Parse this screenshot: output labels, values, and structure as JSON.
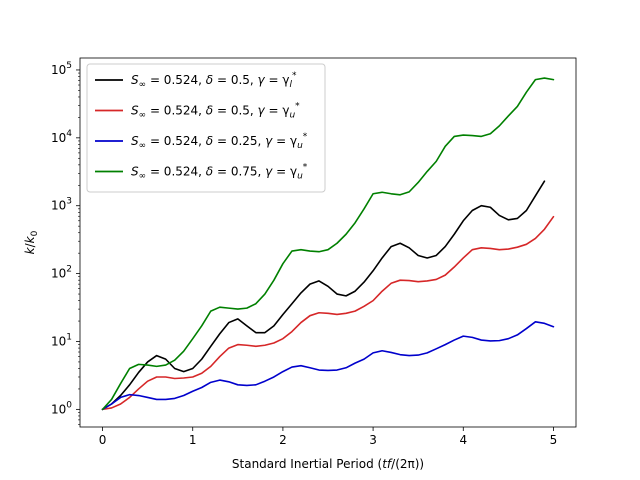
{
  "chart_data": {
    "type": "line",
    "title": "",
    "xlabel": "Standard Inertial Period (tf/(2π))",
    "ylabel": "k/k0",
    "xlim": [
      -0.25,
      5.25
    ],
    "ylim": [
      0.55,
      150000
    ],
    "yscale": "log",
    "grid": false,
    "legend_position": "upper-left",
    "xticks": [
      0,
      1,
      2,
      3,
      4,
      5
    ],
    "xtick_labels": [
      "0",
      "1",
      "2",
      "3",
      "4",
      "5"
    ],
    "yticks": [
      1,
      10,
      100,
      1000,
      10000,
      100000
    ],
    "ytick_labels": [
      "10",
      "10",
      "10",
      "10",
      "10",
      "10"
    ],
    "ytick_exponents": [
      "0",
      "1",
      "2",
      "3",
      "4",
      "5"
    ],
    "series": [
      {
        "name": "S∞ = 0.524, δ = 0.5, γ = γl*",
        "color": "#000000",
        "x": [
          0,
          0.1,
          0.2,
          0.3,
          0.4,
          0.5,
          0.6,
          0.7,
          0.8,
          0.9,
          1.0,
          1.1,
          1.2,
          1.3,
          1.4,
          1.5,
          1.6,
          1.7,
          1.8,
          1.9,
          2.0,
          2.1,
          2.2,
          2.3,
          2.4,
          2.5,
          2.6,
          2.7,
          2.8,
          2.9,
          3.0,
          3.1,
          3.2,
          3.3,
          3.4,
          3.5,
          3.6,
          3.7,
          3.8,
          3.9,
          4.0,
          4.1,
          4.2,
          4.3,
          4.4,
          4.5,
          4.6,
          4.7,
          4.8,
          4.9
        ],
        "y": [
          1.0,
          1.2,
          1.6,
          2.3,
          3.5,
          5.0,
          6.2,
          5.5,
          4.0,
          3.6,
          4.0,
          5.5,
          8.5,
          13,
          19,
          21.5,
          17,
          13.5,
          13.5,
          17,
          25,
          36,
          52,
          70,
          78,
          65,
          50,
          47,
          55,
          75,
          110,
          170,
          250,
          280,
          240,
          185,
          170,
          185,
          250,
          380,
          600,
          850,
          1000,
          950,
          720,
          620,
          650,
          850,
          1400,
          2300
        ]
      },
      {
        "name": "S∞ = 0.524, δ = 0.5, γ = γu*",
        "color": "#d62728",
        "x": [
          0,
          0.1,
          0.2,
          0.3,
          0.4,
          0.5,
          0.6,
          0.7,
          0.8,
          0.9,
          1.0,
          1.1,
          1.2,
          1.3,
          1.4,
          1.5,
          1.6,
          1.7,
          1.8,
          1.9,
          2.0,
          2.1,
          2.2,
          2.3,
          2.4,
          2.5,
          2.6,
          2.7,
          2.8,
          2.9,
          3.0,
          3.1,
          3.2,
          3.3,
          3.4,
          3.5,
          3.6,
          3.7,
          3.8,
          3.9,
          4.0,
          4.1,
          4.2,
          4.3,
          4.4,
          4.5,
          4.6,
          4.7,
          4.8,
          4.9,
          5.0
        ],
        "y": [
          1.0,
          1.05,
          1.2,
          1.5,
          2.0,
          2.6,
          3.0,
          3.0,
          2.85,
          2.9,
          3.0,
          3.4,
          4.3,
          6.0,
          8.0,
          9.0,
          8.8,
          8.5,
          8.8,
          9.5,
          11,
          14,
          19,
          24,
          26.5,
          26,
          25,
          26,
          28,
          33,
          40,
          55,
          72,
          80,
          79,
          76,
          78,
          82,
          95,
          125,
          170,
          225,
          240,
          235,
          225,
          230,
          245,
          270,
          330,
          450,
          690
        ]
      },
      {
        "name": "S∞ = 0.524, δ = 0.25, γ = γu*",
        "color": "#0000cc",
        "x": [
          0,
          0.1,
          0.2,
          0.3,
          0.4,
          0.5,
          0.6,
          0.7,
          0.8,
          0.9,
          1.0,
          1.1,
          1.2,
          1.3,
          1.4,
          1.5,
          1.6,
          1.7,
          1.8,
          1.9,
          2.0,
          2.1,
          2.2,
          2.3,
          2.4,
          2.5,
          2.6,
          2.7,
          2.8,
          2.9,
          3.0,
          3.1,
          3.2,
          3.3,
          3.4,
          3.5,
          3.6,
          3.7,
          3.8,
          3.9,
          4.0,
          4.1,
          4.2,
          4.3,
          4.4,
          4.5,
          4.6,
          4.7,
          4.8,
          4.9,
          5.0
        ],
        "y": [
          1.0,
          1.2,
          1.5,
          1.65,
          1.6,
          1.5,
          1.4,
          1.4,
          1.45,
          1.6,
          1.85,
          2.1,
          2.5,
          2.7,
          2.55,
          2.3,
          2.25,
          2.3,
          2.6,
          3.0,
          3.6,
          4.2,
          4.4,
          4.1,
          3.8,
          3.75,
          3.8,
          4.1,
          4.8,
          5.5,
          6.8,
          7.3,
          6.9,
          6.4,
          6.2,
          6.3,
          6.8,
          7.8,
          9.0,
          10.5,
          12.0,
          11.5,
          10.5,
          10.2,
          10.3,
          11.0,
          12.5,
          15.5,
          19.5,
          18.5,
          16.5
        ]
      },
      {
        "name": "S∞ = 0.524, δ = 0.75, γ = γu*",
        "color": "#008000",
        "x": [
          0,
          0.1,
          0.2,
          0.3,
          0.4,
          0.5,
          0.6,
          0.7,
          0.8,
          0.9,
          1.0,
          1.1,
          1.2,
          1.3,
          1.4,
          1.5,
          1.6,
          1.7,
          1.8,
          1.9,
          2.0,
          2.1,
          2.2,
          2.3,
          2.4,
          2.5,
          2.6,
          2.7,
          2.8,
          2.9,
          3.0,
          3.1,
          3.2,
          3.3,
          3.4,
          3.5,
          3.6,
          3.7,
          3.8,
          3.9,
          4.0,
          4.1,
          4.2,
          4.3,
          4.4,
          4.5,
          4.6,
          4.7,
          4.8,
          4.9,
          5.0
        ],
        "y": [
          1.0,
          1.4,
          2.4,
          4.0,
          4.6,
          4.5,
          4.3,
          4.5,
          5.3,
          7.2,
          11,
          17,
          28,
          32,
          31,
          30,
          31,
          36,
          50,
          80,
          140,
          215,
          225,
          215,
          210,
          225,
          280,
          380,
          560,
          900,
          1500,
          1580,
          1500,
          1450,
          1600,
          2200,
          3200,
          4500,
          7500,
          10500,
          11000,
          10800,
          10500,
          11500,
          15000,
          21000,
          29000,
          47000,
          72000,
          76000,
          72000
        ]
      }
    ]
  },
  "legend": {
    "items": [
      {
        "s": "S",
        "s_sub": "∞",
        "s_val": " = 0.524, ",
        "delta": "δ",
        "delta_val": " = 0.5, ",
        "gamma": "γ",
        "gamma_eq": " = γ",
        "gamma_sub": "l",
        "gamma_sup": "*"
      },
      {
        "s": "S",
        "s_sub": "∞",
        "s_val": " = 0.524, ",
        "delta": "δ",
        "delta_val": " = 0.5, ",
        "gamma": "γ",
        "gamma_eq": " = γ",
        "gamma_sub": "u",
        "gamma_sup": "*"
      },
      {
        "s": "S",
        "s_sub": "∞",
        "s_val": " = 0.524, ",
        "delta": "δ",
        "delta_val": " = 0.25, ",
        "gamma": "γ",
        "gamma_eq": " = γ",
        "gamma_sub": "u",
        "gamma_sup": "*"
      },
      {
        "s": "S",
        "s_sub": "∞",
        "s_val": " = 0.524, ",
        "delta": "δ",
        "delta_val": " = 0.75, ",
        "gamma": "γ",
        "gamma_eq": " = γ",
        "gamma_sub": "u",
        "gamma_sup": "*"
      }
    ]
  },
  "axes": {
    "xlabel_prefix": "Standard Inertial Period (",
    "xlabel_math": "tf",
    "xlabel_suffix": "/(2π))",
    "ylabel_k": "k",
    "ylabel_slash": "/",
    "ylabel_k0": "k",
    "ylabel_sub": "0"
  }
}
